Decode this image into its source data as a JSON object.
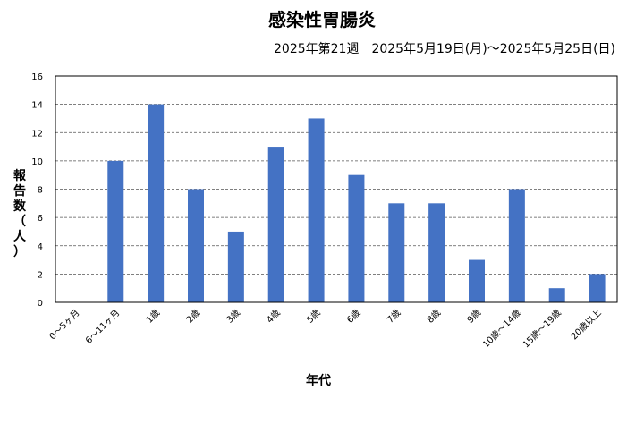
{
  "chart_data": {
    "type": "bar",
    "title": "感染性胃腸炎",
    "subtitle": "2025年第21週　2025年5月19日(月)～2025年5月25日(日)",
    "xlabel": "年代",
    "ylabel": "報告数（人）",
    "ylim": [
      0,
      16
    ],
    "yticks": [
      0,
      2,
      4,
      6,
      8,
      10,
      12,
      14,
      16
    ],
    "grid": true,
    "categories": [
      "0～5ヶ月",
      "6～11ヶ月",
      "1歳",
      "2歳",
      "3歳",
      "4歳",
      "5歳",
      "6歳",
      "7歳",
      "8歳",
      "9歳",
      "10歳～14歳",
      "15歳～19歳",
      "20歳以上"
    ],
    "values": [
      0,
      10,
      14,
      8,
      5,
      11,
      13,
      9,
      7,
      7,
      3,
      8,
      1,
      2
    ],
    "bar_color": "#4472C4"
  }
}
